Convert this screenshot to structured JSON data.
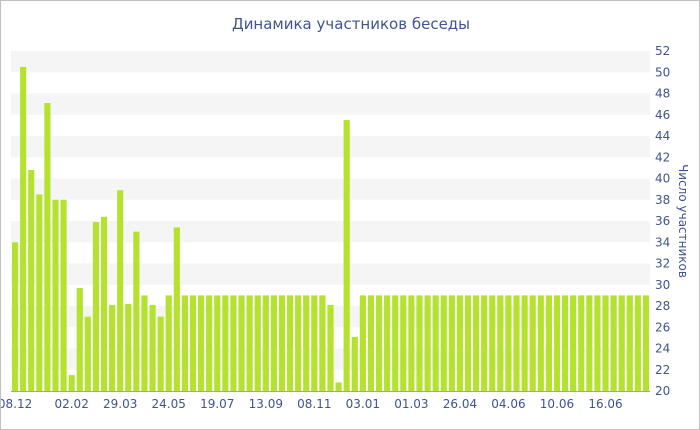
{
  "chart_data": {
    "type": "bar",
    "title": "Динамика участников беседы",
    "xlabel": "",
    "ylabel": "Число участников",
    "ylim": [
      20,
      52
    ],
    "y_ticks": [
      20,
      22,
      24,
      26,
      28,
      30,
      32,
      34,
      36,
      38,
      40,
      42,
      44,
      46,
      48,
      50,
      52
    ],
    "y_axis_position": "right",
    "grid": "horizontal alternating bands",
    "legend": "none",
    "bar_color": "#b5e22e",
    "band_color": "#f5f5f5",
    "text_color": "#3f5491",
    "x_tick_labels": [
      {
        "label": "08.12",
        "index": 0
      },
      {
        "label": "02.02",
        "index": 7
      },
      {
        "label": "29.03",
        "index": 13
      },
      {
        "label": "24.05",
        "index": 19
      },
      {
        "label": "19.07",
        "index": 25
      },
      {
        "label": "13.09",
        "index": 31
      },
      {
        "label": "08.11",
        "index": 37
      },
      {
        "label": "03.01",
        "index": 43
      },
      {
        "label": "01.03",
        "index": 49
      },
      {
        "label": "26.04",
        "index": 55
      },
      {
        "label": "04.06",
        "index": 61
      },
      {
        "label": "10.06",
        "index": 67
      },
      {
        "label": "16.06",
        "index": 73
      }
    ],
    "values": [
      34,
      50.5,
      40.8,
      38.5,
      47.1,
      38,
      38,
      21.5,
      29.7,
      27,
      35.9,
      36.4,
      28.1,
      38.9,
      28.2,
      35,
      29,
      28.1,
      27,
      29,
      35.4,
      29,
      29,
      29,
      29,
      29,
      29,
      29,
      29,
      29,
      29,
      29,
      29,
      29,
      29,
      29,
      29,
      29,
      29,
      28.1,
      20.8,
      45.5,
      25.1,
      29,
      29,
      29,
      29,
      29,
      29,
      29,
      29,
      29,
      29,
      29,
      29,
      29,
      29,
      29,
      29,
      29,
      29,
      29,
      29,
      29,
      29,
      29,
      29,
      29,
      29,
      29,
      29,
      29,
      29,
      29,
      29,
      29,
      29,
      29,
      29
    ]
  }
}
